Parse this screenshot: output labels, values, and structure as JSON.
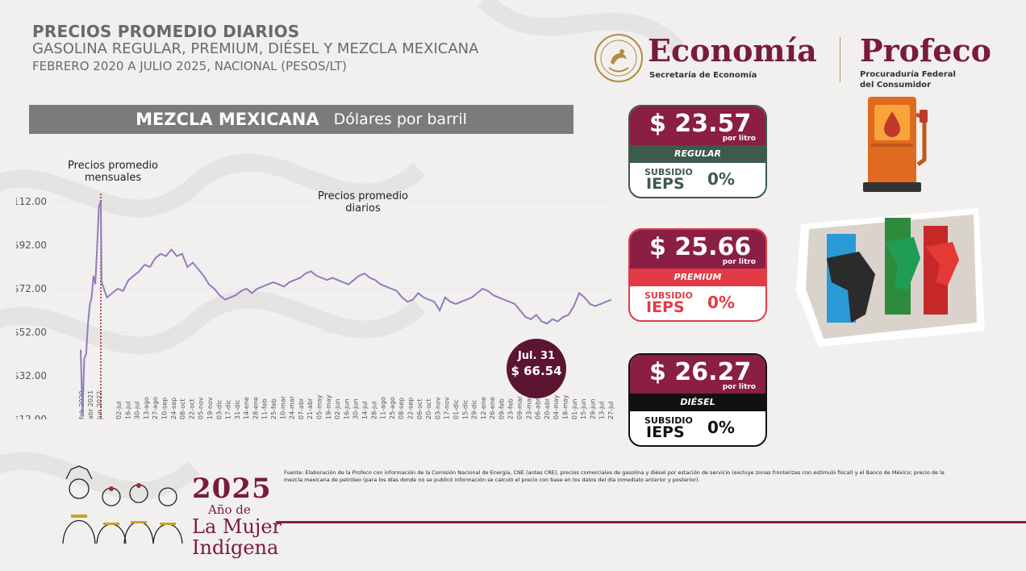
{
  "header": {
    "title": "PRECIOS PROMEDIO DIARIOS",
    "subtitle": "GASOLINA REGULAR, PREMIUM, DIÉSEL Y MEZCLA MEXICANA",
    "period": "FEBRERO 2020 A JULIO 2025, NACIONAL (PESOS/LT)"
  },
  "banner": {
    "product": "MEZCLA MEXICANA",
    "unit": "Dólares por barril"
  },
  "logos": {
    "economia": {
      "word": "Economía",
      "sub": "Secretaría de Economía",
      "seal_text": "ESTADOS UNIDOS MEXICANOS"
    },
    "profeco": {
      "word": "Profeco",
      "sub_line1": "Procuraduría Federal",
      "sub_line2": "del Consumidor"
    }
  },
  "colors": {
    "brand": "#8a1e44",
    "line": "#8f7dbb",
    "regular": "#3d5a4c",
    "premium": "#e23b45",
    "diesel": "#111111",
    "callout": "#5c1530"
  },
  "chart_data": {
    "type": "line",
    "title": "MEZCLA MEXICANA",
    "ylabel": "Dólares por barril",
    "ylim": [
      12,
      112
    ],
    "yticks": [
      "$112.00",
      "$92.00",
      "$72.00",
      "$52.00",
      "$32.00",
      "$12.00"
    ],
    "yticks_values": [
      112,
      92,
      72,
      52,
      32,
      12
    ],
    "annotation_monthly": "Precios promedio mensuales",
    "annotation_daily": "Precios promedio diarios",
    "monthly_ticks": [
      "feb 2020",
      "abr 2021",
      "jun 2022"
    ],
    "daily_ticks": [
      "02-jul",
      "16-jul",
      "30-jul",
      "13-ago",
      "27-ago",
      "10-sep",
      "24-sep",
      "08-oct",
      "22-oct",
      "05-nov",
      "19-nov",
      "03-dic",
      "17-dic",
      "31-dic",
      "14-ene",
      "28-ene",
      "11-feb",
      "25-feb",
      "10-mar",
      "24-mar",
      "07-abr",
      "21-abr",
      "05-may",
      "19-may",
      "02-jun",
      "16-jun",
      "30-jun",
      "14-jul",
      "28-jul",
      "11-ago",
      "25-ago",
      "08-sep",
      "22-sep",
      "06-oct",
      "20-oct",
      "03-nov",
      "17-nov",
      "01-dic",
      "15-dic",
      "29-dic",
      "12-ene",
      "26-ene",
      "09-feb",
      "23-feb",
      "09-mar",
      "23-mar",
      "06-abr",
      "20-abr",
      "04-may",
      "18-may",
      "01-jun",
      "15-jun",
      "29-jun",
      "13-jul",
      "27-jul"
    ],
    "series": [
      {
        "values": [
          44,
          14,
          40,
          42,
          56,
          65,
          68,
          78,
          74,
          92,
          110,
          112,
          75,
          68,
          70,
          72,
          71,
          76,
          78,
          80,
          83,
          82,
          86,
          88,
          87,
          90,
          87,
          88,
          82,
          84,
          81,
          78,
          74,
          72,
          69,
          67,
          68,
          69,
          71,
          72,
          70,
          72,
          73,
          74,
          75,
          74,
          73,
          75,
          76,
          77,
          79,
          80,
          78,
          77,
          76,
          77,
          76,
          75,
          74,
          76,
          78,
          79,
          77,
          76,
          74,
          73,
          72,
          71,
          68,
          66,
          67,
          70,
          68,
          67,
          66,
          62,
          68,
          66,
          65,
          66,
          67,
          68,
          70,
          72,
          71,
          69,
          68,
          67,
          66,
          65,
          62,
          59,
          58,
          60,
          57,
          56,
          58,
          57,
          59,
          60,
          64,
          70,
          68,
          65,
          64,
          65,
          66,
          67
        ]
      }
    ],
    "callout": {
      "label": "Jul. 31",
      "value": "$ 66.54"
    }
  },
  "cards": [
    {
      "price": "$ 23.57",
      "unit": "por litro",
      "name": "REGULAR",
      "subsidio": "SUBSIDIO",
      "ieps": "IEPS",
      "pct": "0%"
    },
    {
      "price": "$ 25.66",
      "unit": "por litro",
      "name": "PREMIUM",
      "subsidio": "SUBSIDIO",
      "ieps": "IEPS",
      "pct": "0%"
    },
    {
      "price": "$ 26.27",
      "unit": "por litro",
      "name": "DIÉSEL",
      "subsidio": "SUBSIDIO",
      "ieps": "IEPS",
      "pct": "0%"
    }
  ],
  "footnote": "Fuente: Elaboración de la Profeco con información de la Comisión Nacional de Energía, CNE (antes CRE), precios comerciales de gasolina y diésel por estación de servicio (excluye zonas fronterizas con estímulo fiscal) y el Banco de México; precio de la mezcla mexicana de petróleo (para los días donde no se publicó información se calculó el precio con base en los datos del día inmediato anterior y posterior).",
  "year_logo": {
    "year": "2025",
    "line1": "Año de",
    "line2": "La Mujer",
    "line3": "Indígena"
  },
  "icons": {
    "fuel": "fuel-pump-icon",
    "nozzles": "fuel-nozzles-icon",
    "women": "indigenous-women-illustration",
    "seal": "national-seal-icon"
  }
}
